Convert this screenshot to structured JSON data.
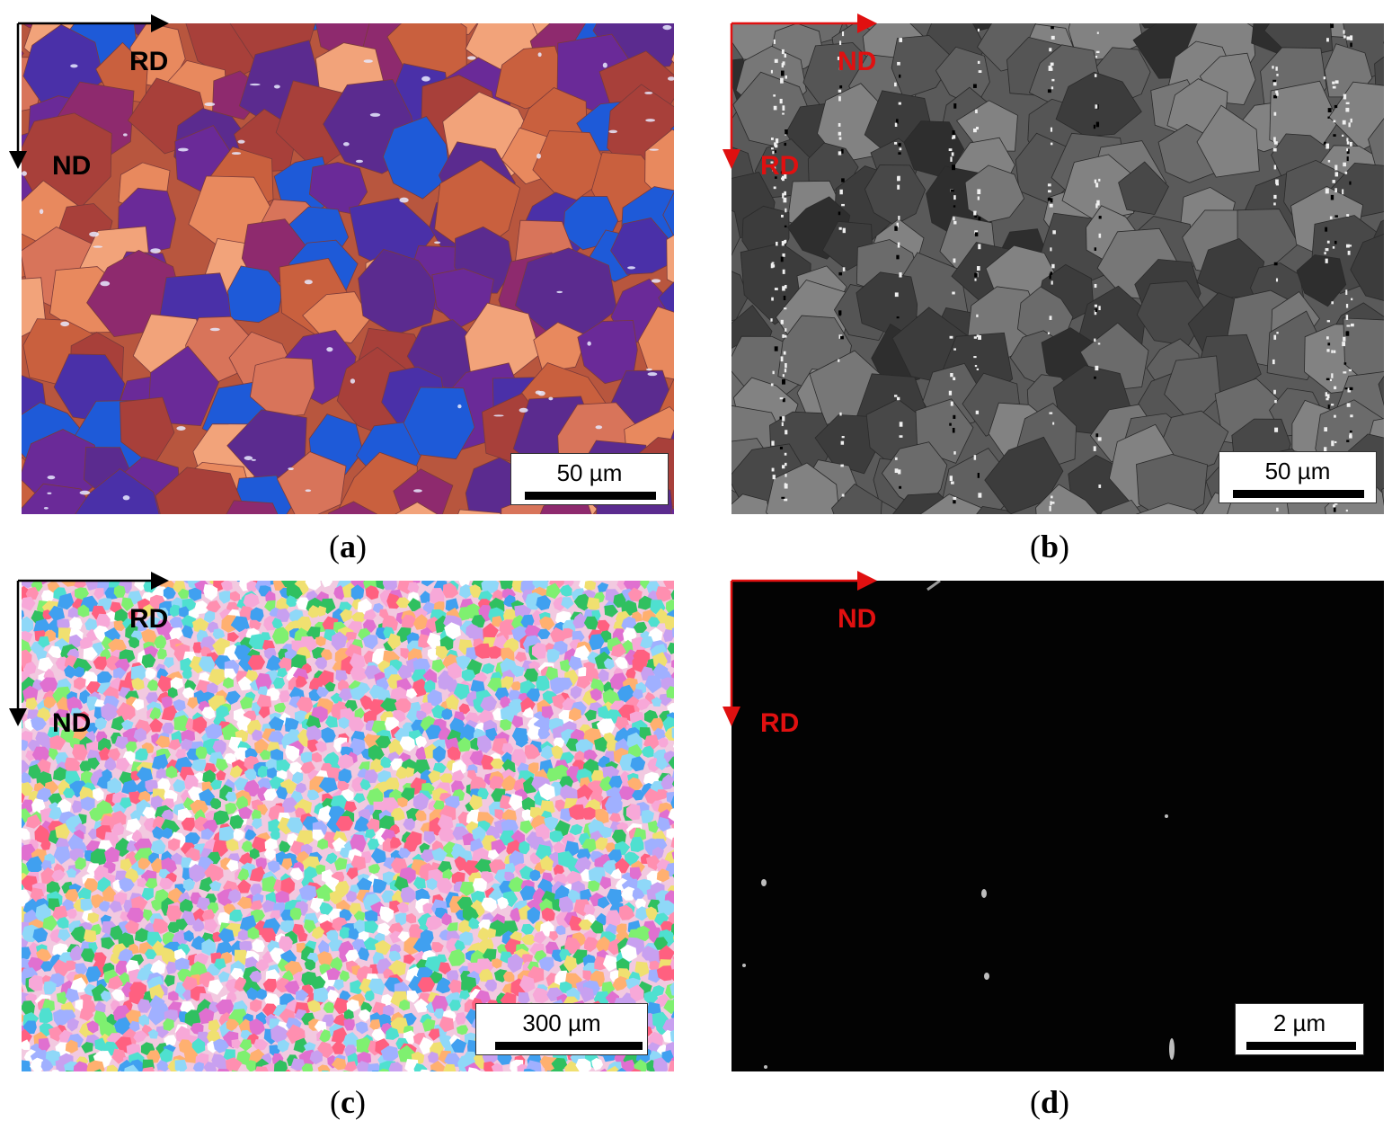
{
  "panels": [
    {
      "id": "a",
      "caption_letter": "a",
      "image_type": "color orientation map (purple/orange/blue grains)",
      "axis_color": "#000000",
      "axis_horizontal_label": "RD",
      "axis_vertical_label": "ND",
      "scale_bar": "50 µm",
      "palette": [
        "#e8895e",
        "#c9603e",
        "#8e2a6e",
        "#6a2a98",
        "#4a30a8",
        "#1e5ad8",
        "#f2a37a",
        "#a8403a",
        "#5b2b8f",
        "#d8745a"
      ]
    },
    {
      "id": "b",
      "caption_letter": "b",
      "image_type": "grayscale grain contrast micrograph",
      "axis_color": "#e01010",
      "axis_horizontal_label": "ND",
      "axis_vertical_label": "RD",
      "scale_bar": "50 µm",
      "palette": [
        "#3c3c3c",
        "#484848",
        "#555555",
        "#606060",
        "#6b6b6b",
        "#777777",
        "#2e2e2e",
        "#828282"
      ]
    },
    {
      "id": "c",
      "caption_letter": "c",
      "image_type": "multicolor orientation map (fine grains)",
      "axis_color": "#000000",
      "axis_horizontal_label": "RD",
      "axis_vertical_label": "ND",
      "scale_bar": "300 µm",
      "palette": [
        "#ff8fb0",
        "#f7a8d8",
        "#c8a0f0",
        "#8fd8f8",
        "#4fe0d0",
        "#7ff070",
        "#30c060",
        "#ffb070",
        "#ff6080",
        "#a0b0ff",
        "#40a0f0",
        "#e070d0",
        "#ffffff",
        "#f0e070"
      ]
    },
    {
      "id": "d",
      "caption_letter": "d",
      "image_type": "dark micrograph with few bright particles",
      "axis_color": "#e01010",
      "axis_horizontal_label": "ND",
      "axis_vertical_label": "RD",
      "scale_bar": "2 µm"
    }
  ]
}
